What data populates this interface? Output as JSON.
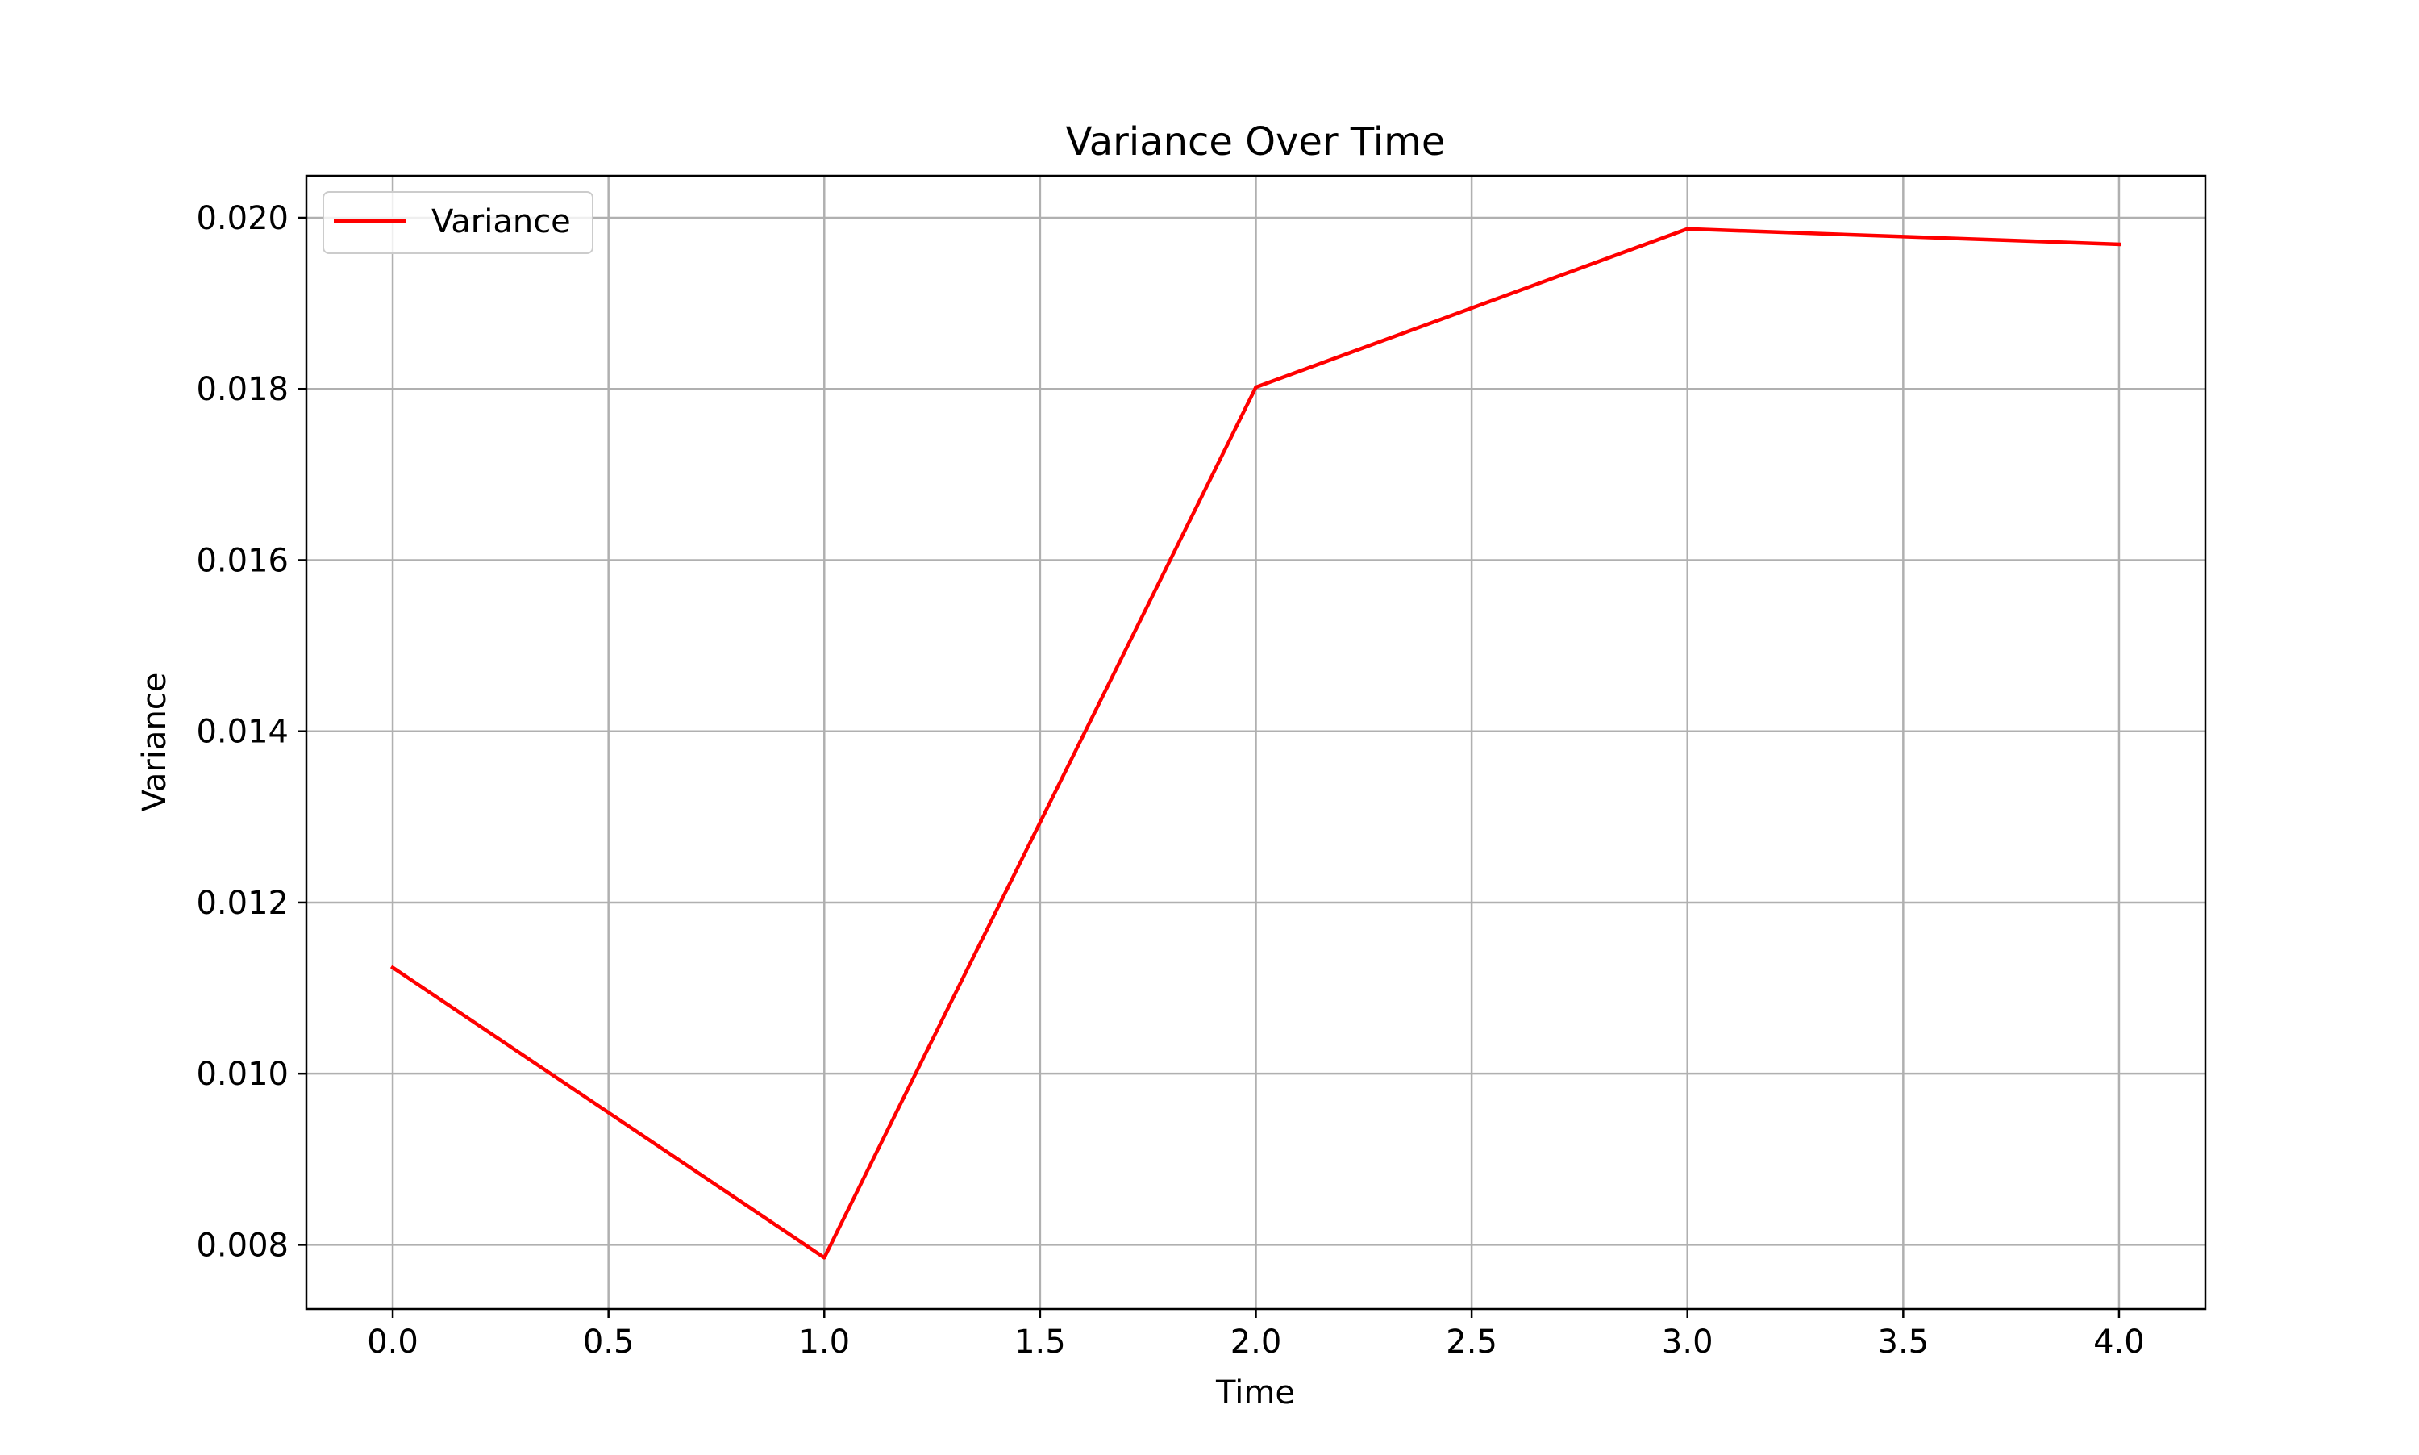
{
  "chart_data": {
    "type": "line",
    "title": "Variance Over Time",
    "xlabel": "Time",
    "ylabel": "Variance",
    "xlim": [
      -0.2,
      4.2
    ],
    "ylim": [
      0.00725,
      0.02049
    ],
    "grid": true,
    "legend_position": "top-left",
    "x_ticks": [
      0.0,
      0.5,
      1.0,
      1.5,
      2.0,
      2.5,
      3.0,
      3.5,
      4.0
    ],
    "x_tick_labels": [
      "0.0",
      "0.5",
      "1.0",
      "1.5",
      "2.0",
      "2.5",
      "3.0",
      "3.5",
      "4.0"
    ],
    "y_ticks": [
      0.008,
      0.01,
      0.012,
      0.014,
      0.016,
      0.018,
      0.02
    ],
    "y_tick_labels": [
      "0.008",
      "0.010",
      "0.012",
      "0.014",
      "0.016",
      "0.018",
      "0.020"
    ],
    "series": [
      {
        "name": "Variance",
        "color": "#ff0000",
        "x": [
          0,
          1,
          2,
          3,
          4
        ],
        "y": [
          0.01124,
          0.00785,
          0.01802,
          0.01987,
          0.01969
        ]
      }
    ]
  }
}
